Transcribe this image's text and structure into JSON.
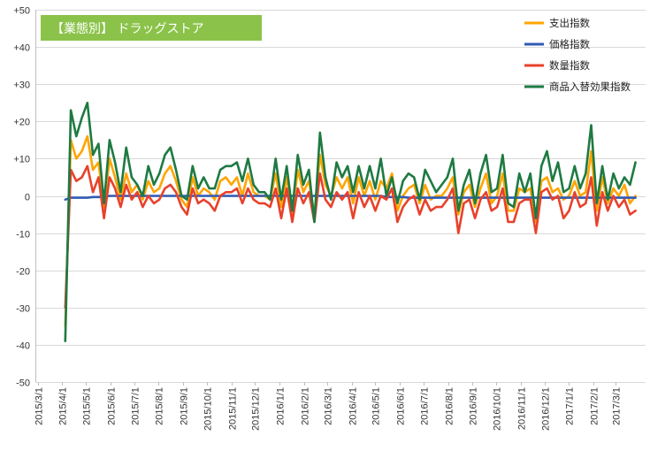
{
  "chart_data": {
    "type": "line",
    "title": "【業態別】 ドラッグストア",
    "xlabel": "",
    "ylabel": "",
    "ylim": [
      -50,
      50
    ],
    "y_ticks": [
      "+50",
      "+40",
      "+30",
      "+20",
      "+10",
      "0",
      "-10",
      "-20",
      "-30",
      "-40",
      "-50"
    ],
    "x_tick_labels": [
      "2015/3/1",
      "2015/4/1",
      "2015/5/1",
      "2015/6/1",
      "2015/7/1",
      "2015/8/1",
      "2015/9/1",
      "2015/10/1",
      "2015/11/1",
      "2015/12/1",
      "2016/1/1",
      "2016/2/1",
      "2016/3/1",
      "2016/4/1",
      "2016/5/1",
      "2016/6/1",
      "2016/7/1",
      "2016/8/1",
      "2016/9/1",
      "2016/10/1",
      "2016/11/1",
      "2016/12/1",
      "2017/1/1",
      "2017/2/1",
      "2017/3/1"
    ],
    "grid": true,
    "legend_position": "top-right",
    "x": [
      "2015/4/5",
      "2015/4/12",
      "2015/4/19",
      "2015/4/26",
      "2015/5/3",
      "2015/5/10",
      "2015/5/17",
      "2015/5/24",
      "2015/5/31",
      "2015/6/7",
      "2015/6/14",
      "2015/6/21",
      "2015/6/28",
      "2015/7/5",
      "2015/7/12",
      "2015/7/19",
      "2015/7/26",
      "2015/8/2",
      "2015/8/9",
      "2015/8/16",
      "2015/8/23",
      "2015/8/30",
      "2015/9/6",
      "2015/9/13",
      "2015/9/20",
      "2015/9/27",
      "2015/10/4",
      "2015/10/11",
      "2015/10/18",
      "2015/10/25",
      "2015/11/1",
      "2015/11/8",
      "2015/11/15",
      "2015/11/22",
      "2015/11/29",
      "2015/12/6",
      "2015/12/13",
      "2015/12/20",
      "2015/12/27",
      "2016/1/3",
      "2016/1/10",
      "2016/1/17",
      "2016/1/24",
      "2016/1/31",
      "2016/2/7",
      "2016/2/14",
      "2016/2/21",
      "2016/2/28",
      "2016/3/6",
      "2016/3/13",
      "2016/3/20",
      "2016/3/27",
      "2016/4/3",
      "2016/4/10",
      "2016/4/17",
      "2016/4/24",
      "2016/5/1",
      "2016/5/8",
      "2016/5/15",
      "2016/5/22",
      "2016/5/29",
      "2016/6/5",
      "2016/6/12",
      "2016/6/19",
      "2016/6/26",
      "2016/7/3",
      "2016/7/10",
      "2016/7/17",
      "2016/7/24",
      "2016/7/31",
      "2016/8/7",
      "2016/8/14",
      "2016/8/21",
      "2016/8/28",
      "2016/9/4",
      "2016/9/11",
      "2016/9/18",
      "2016/9/25",
      "2016/10/2",
      "2016/10/9",
      "2016/10/16",
      "2016/10/23",
      "2016/10/30",
      "2016/11/6",
      "2016/11/13",
      "2016/11/20",
      "2016/11/27",
      "2016/12/4",
      "2016/12/11",
      "2016/12/18",
      "2016/12/25",
      "2017/1/1",
      "2017/1/8",
      "2017/1/15",
      "2017/1/22",
      "2017/1/29",
      "2017/2/5",
      "2017/2/12",
      "2017/2/19",
      "2017/2/26",
      "2017/3/5",
      "2017/3/12",
      "2017/3/19",
      "2017/3/26"
    ],
    "series": [
      {
        "name": "支出指数",
        "color": "#FFA500",
        "values": [
          -35,
          15,
          10,
          12,
          16,
          7,
          9,
          -3,
          10,
          5,
          -1,
          6,
          1,
          3,
          -1,
          4,
          1,
          2,
          6,
          8,
          4,
          -1,
          -3,
          5,
          0,
          2,
          1,
          -1,
          4,
          5,
          3,
          5,
          0,
          6,
          1,
          0,
          0,
          -1,
          6,
          -3,
          5,
          -5,
          7,
          1,
          4,
          -5,
          11,
          3,
          0,
          5,
          2,
          5,
          -2,
          5,
          0,
          4,
          -1,
          4,
          2,
          6,
          -4,
          0,
          2,
          3,
          -2,
          3,
          -1,
          0,
          0,
          2,
          5,
          -5,
          1,
          3,
          -3,
          2,
          6,
          -2,
          0,
          6,
          -4,
          -4,
          2,
          1,
          2,
          -7,
          4,
          5,
          1,
          2,
          -1,
          0,
          4,
          0,
          1,
          12,
          -4,
          5,
          -2,
          2,
          0,
          3,
          -2,
          0
        ]
      },
      {
        "name": "価格指数",
        "color": "#2F5BB7",
        "values": [
          -1,
          -0.5,
          -0.5,
          -0.5,
          -0.5,
          -0.3,
          -0.3,
          -0.3,
          0,
          0,
          0,
          0,
          0,
          0,
          0,
          0,
          0,
          0,
          0,
          0,
          0,
          0,
          0,
          0,
          0,
          0,
          0,
          0,
          0,
          0,
          0,
          0,
          0,
          0,
          0,
          0,
          0,
          0,
          0,
          0,
          0,
          0,
          0,
          0,
          0,
          0,
          0,
          0,
          0,
          0,
          0,
          0,
          0,
          0,
          0,
          0,
          0,
          0,
          -0.3,
          -0.3,
          -0.3,
          -0.3,
          -0.5,
          -0.5,
          -0.5,
          -0.5,
          -0.5,
          -0.5,
          -0.5,
          -0.5,
          -0.5,
          -0.5,
          -0.5,
          -0.5,
          -0.5,
          -0.5,
          -0.5,
          -0.5,
          -0.5,
          -0.5,
          -0.5,
          -0.5,
          -0.5,
          -0.5,
          -0.5,
          -0.5,
          -0.5,
          -0.5,
          -0.5,
          -0.5,
          -0.5,
          -0.5,
          -0.5,
          -0.5,
          -0.5,
          -0.5,
          -0.5,
          -0.5,
          -0.5,
          -0.5,
          -0.5,
          -0.5,
          -0.5,
          -0.5
        ]
      },
      {
        "name": "数量指数",
        "color": "#E8412B",
        "values": [
          -30,
          7,
          4,
          5,
          8,
          1,
          5,
          -6,
          5,
          2,
          -3,
          3,
          -1,
          1,
          -3,
          0,
          -2,
          -1,
          2,
          3,
          1,
          -3,
          -5,
          2,
          -2,
          -1,
          -2,
          -4,
          0,
          1,
          1,
          2,
          -2,
          2,
          -1,
          -2,
          -2,
          -3,
          2,
          -6,
          2,
          -7,
          2,
          -2,
          1,
          -7,
          6,
          -1,
          -3,
          1,
          -1,
          1,
          -6,
          1,
          -3,
          0,
          -4,
          0,
          -1,
          2,
          -7,
          -3,
          -1,
          0,
          -5,
          -1,
          -4,
          -3,
          -3,
          -1,
          2,
          -10,
          -2,
          -1,
          -6,
          -1,
          1,
          -4,
          -3,
          2,
          -7,
          -7,
          -2,
          -1,
          -1,
          -10,
          1,
          2,
          -1,
          0,
          -6,
          -4,
          1,
          -3,
          -2,
          5,
          -8,
          1,
          -4,
          0,
          -3,
          -1,
          -5,
          -4
        ]
      },
      {
        "name": "商品入替効果指数",
        "color": "#1E7A42",
        "values": [
          -39,
          23,
          16,
          21,
          25,
          11,
          14,
          -2,
          15,
          9,
          1,
          13,
          5,
          3,
          0,
          8,
          3,
          6,
          11,
          13,
          7,
          0,
          -1,
          8,
          2,
          5,
          2,
          2,
          7,
          8,
          8,
          9,
          4,
          10,
          3,
          1,
          1,
          -1,
          10,
          -1,
          8,
          -4,
          11,
          3,
          7,
          -7,
          17,
          5,
          -1,
          9,
          5,
          8,
          1,
          8,
          2,
          8,
          2,
          10,
          0,
          5,
          -2,
          4,
          6,
          5,
          -1,
          7,
          4,
          1,
          3,
          5,
          10,
          -4,
          3,
          7,
          -2,
          6,
          11,
          1,
          2,
          11,
          -2,
          -3,
          6,
          1,
          6,
          -6,
          8,
          12,
          4,
          9,
          1,
          2,
          8,
          2,
          6,
          19,
          -2,
          8,
          -1,
          6,
          2,
          5,
          3,
          9
        ]
      }
    ]
  }
}
